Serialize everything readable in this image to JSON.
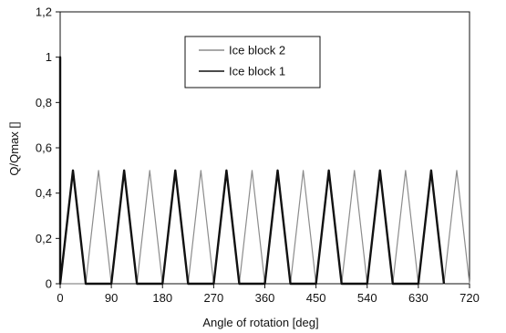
{
  "chart_data": {
    "type": "line",
    "xlabel": "Angle of rotation [deg]",
    "ylabel": "Q/Qmax []",
    "xlim": [
      0,
      720
    ],
    "ylim": [
      0,
      1.2
    ],
    "x_ticks": [
      "0",
      "90",
      "180",
      "270",
      "360",
      "450",
      "540",
      "630",
      "720"
    ],
    "y_ticks": [
      "0",
      "0,2",
      "0,4",
      "0,6",
      "0,8",
      "1",
      "1,2"
    ],
    "grid": false,
    "legend_position": "top-center",
    "series": [
      {
        "name": "Ice block 2",
        "color": "#8c8c8c",
        "x": [
          0,
          45,
          67.5,
          90,
          112.5,
          135,
          157.5,
          180,
          202.5,
          225,
          247.5,
          270,
          292.5,
          315,
          337.5,
          360,
          382.5,
          405,
          427.5,
          450,
          472.5,
          495,
          517.5,
          540,
          562.5,
          585,
          607.5,
          630,
          652.5,
          675,
          697.5,
          720
        ],
        "y": [
          0,
          0,
          0.5,
          0,
          0.5,
          0,
          0.5,
          0,
          0.5,
          0,
          0.5,
          0,
          0.5,
          0,
          0.5,
          0,
          0.5,
          0,
          0.5,
          0,
          0.5,
          0,
          0.5,
          0,
          0.5,
          0,
          0.5,
          0,
          0.5,
          0,
          0.5,
          0
        ]
      },
      {
        "name": "Ice block 1",
        "color": "#111111",
        "x": [
          0,
          0,
          0,
          22.5,
          45,
          67.5,
          90,
          112.5,
          135,
          157.5,
          180,
          202.5,
          225,
          247.5,
          270,
          292.5,
          315,
          337.5,
          360,
          382.5,
          405,
          427.5,
          450,
          472.5,
          495,
          517.5,
          540,
          562.5,
          585,
          607.5,
          630,
          652.5,
          675
        ],
        "y": [
          0,
          1.0,
          0,
          0.5,
          0,
          0,
          0,
          0.5,
          0,
          0,
          0,
          0.5,
          0,
          0,
          0,
          0.5,
          0,
          0,
          0,
          0.5,
          0,
          0,
          0,
          0.5,
          0,
          0,
          0,
          0.5,
          0,
          0,
          0,
          0.5,
          0
        ]
      }
    ]
  }
}
